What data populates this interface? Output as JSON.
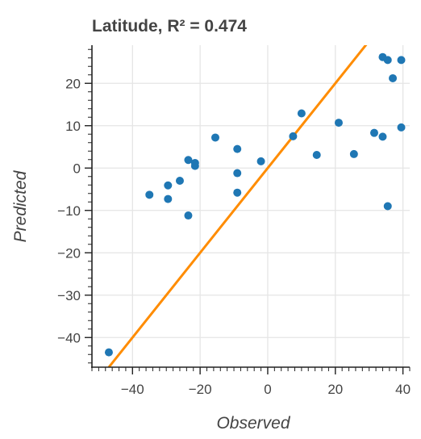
{
  "chart_data": {
    "type": "scatter",
    "title": "Latitude, R² = 0.474",
    "xlabel": "Observed",
    "ylabel": "Predicted",
    "xlim": [
      -52,
      42
    ],
    "ylim": [
      -47,
      29
    ],
    "xticks": [
      -40,
      -20,
      0,
      20,
      40
    ],
    "yticks": [
      -40,
      -30,
      -20,
      -10,
      0,
      10,
      20
    ],
    "grid": true,
    "identity_line": {
      "from": [
        -47,
        -47
      ],
      "to": [
        30,
        30
      ],
      "color": "#ff8c00"
    },
    "point_color": "#1f77b4",
    "points": [
      {
        "x": -47,
        "y": -43.5
      },
      {
        "x": -35,
        "y": -6.3
      },
      {
        "x": -29.5,
        "y": -4.1
      },
      {
        "x": -29.5,
        "y": -7.3
      },
      {
        "x": -26,
        "y": -3
      },
      {
        "x": -23.5,
        "y": 1.9
      },
      {
        "x": -23.5,
        "y": -11.2
      },
      {
        "x": -21.5,
        "y": 1.2
      },
      {
        "x": -21.5,
        "y": 0.5
      },
      {
        "x": -15.5,
        "y": 7.2
      },
      {
        "x": -9,
        "y": 4.5
      },
      {
        "x": -9,
        "y": -1.2
      },
      {
        "x": -9,
        "y": -5.8
      },
      {
        "x": -2,
        "y": 1.6
      },
      {
        "x": 7.5,
        "y": 7.5
      },
      {
        "x": 10,
        "y": 12.9
      },
      {
        "x": 14.5,
        "y": 3.1
      },
      {
        "x": 21,
        "y": 10.7
      },
      {
        "x": 25.5,
        "y": 3.3
      },
      {
        "x": 31.5,
        "y": 8.3
      },
      {
        "x": 34,
        "y": 7.4
      },
      {
        "x": 34,
        "y": 26.2
      },
      {
        "x": 35.5,
        "y": 25.5
      },
      {
        "x": 35.5,
        "y": -9
      },
      {
        "x": 37,
        "y": 21.2
      },
      {
        "x": 39.5,
        "y": 25.5
      },
      {
        "x": 39.5,
        "y": 9.6
      }
    ]
  }
}
